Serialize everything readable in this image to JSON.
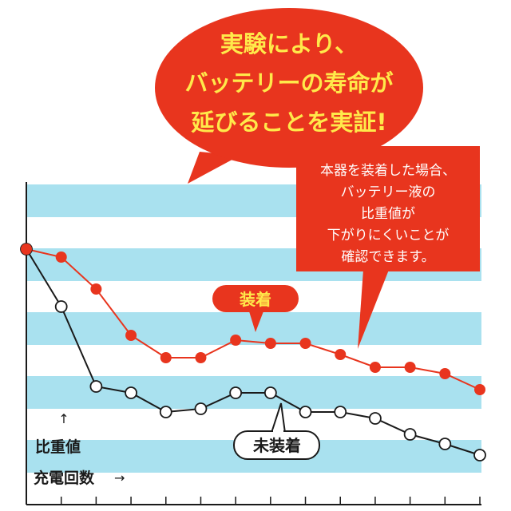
{
  "headline": {
    "lines": [
      "実験により、",
      "バッテリーの寿命が",
      "延びることを実証!"
    ]
  },
  "callout": {
    "lines": [
      "本器を装着した場合、",
      "バッテリー液の",
      "比重値が",
      "下がりにくいことが",
      "確認できます。"
    ]
  },
  "colors": {
    "accent_red": "#e8351e",
    "headline_yellow": "#ffe94a",
    "stripe_blue": "#a9e1ef",
    "line_black": "#1a1a1a"
  },
  "chart_data": {
    "type": "line",
    "title": "",
    "ylabel": "比重値",
    "xlabel": "充電回数",
    "y_arrow": "↑",
    "x_arrow": "→",
    "axis_numbers_printed": false,
    "x": [
      0,
      1,
      2,
      3,
      4,
      5,
      6,
      7,
      8,
      9,
      10,
      11,
      12,
      13
    ],
    "ylim": [
      0,
      10
    ],
    "background": "horizontal blue stripes",
    "series": [
      {
        "name": "装着",
        "color": "#e8351e",
        "marker": "filled-circle",
        "values": [
          8.0,
          7.75,
          6.75,
          5.3,
          4.6,
          4.6,
          5.15,
          5.05,
          5.05,
          4.7,
          4.3,
          4.3,
          4.1,
          3.6
        ]
      },
      {
        "name": "未装着",
        "color": "#1a1a1a",
        "marker": "open-circle",
        "values": [
          8.0,
          6.2,
          3.7,
          3.5,
          2.9,
          3.0,
          3.5,
          3.5,
          2.9,
          2.9,
          2.7,
          2.2,
          1.9,
          1.55
        ]
      }
    ]
  }
}
